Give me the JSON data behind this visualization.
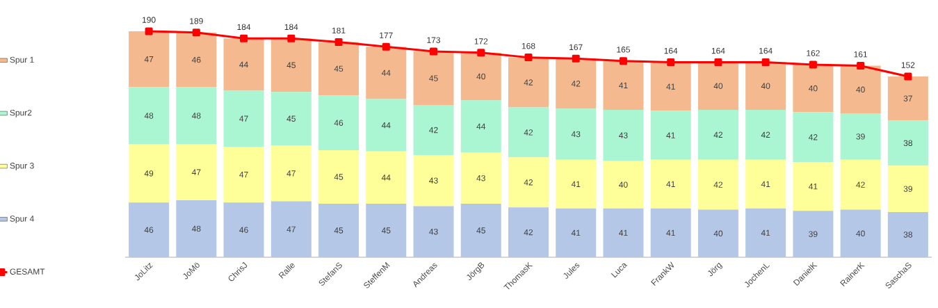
{
  "chart_data": {
    "type": "bar",
    "stacked": true,
    "data_labels": true,
    "legend": "left",
    "marker": "square",
    "categories": [
      "JoLitz",
      "JoMö",
      "ChrisJ",
      "Ralle",
      "StefanS",
      "SteffenM",
      "Andreas",
      "JörgB",
      "ThomasK",
      "Jules",
      "Luca",
      "FrankW",
      "Jörg",
      "JochenL",
      "DanielK",
      "RainerK",
      "SaschaS"
    ],
    "series": [
      {
        "name": "Spur 4",
        "color": "#b4c7e7",
        "values": [
          46,
          48,
          46,
          47,
          45,
          45,
          43,
          45,
          42,
          41,
          41,
          41,
          40,
          41,
          39,
          40,
          38
        ]
      },
      {
        "name": "Spur 3",
        "color": "#ffff99",
        "values": [
          49,
          47,
          47,
          47,
          45,
          44,
          43,
          43,
          42,
          41,
          40,
          41,
          42,
          41,
          41,
          42,
          39
        ]
      },
      {
        "name": "Spur2",
        "color": "#aaf5d2",
        "values": [
          48,
          48,
          47,
          45,
          46,
          44,
          42,
          44,
          42,
          43,
          43,
          41,
          42,
          42,
          42,
          39,
          38
        ]
      },
      {
        "name": "Spur 1",
        "color": "#f4b98e",
        "values": [
          47,
          46,
          44,
          45,
          45,
          44,
          45,
          40,
          42,
          42,
          41,
          41,
          40,
          40,
          40,
          40,
          37
        ]
      },
      {
        "name": "GESAMT",
        "type": "line",
        "color": "#ff0000",
        "values": [
          190,
          189,
          184,
          184,
          181,
          177,
          173,
          172,
          168,
          167,
          165,
          164,
          164,
          164,
          162,
          161,
          152
        ]
      }
    ]
  }
}
